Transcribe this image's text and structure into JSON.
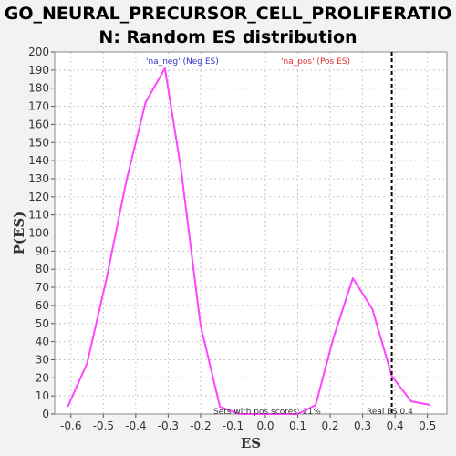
{
  "chart_data": {
    "type": "line",
    "title_line1": "GO_NEURAL_PRECURSOR_CELL_PROLIFERATIO",
    "title_line2": "N: Random ES distribution",
    "xlabel": "ES",
    "ylabel": "P(ES)",
    "xlim": [
      -0.65,
      0.56
    ],
    "ylim": [
      0,
      200
    ],
    "x_ticks": [
      -0.6,
      -0.5,
      -0.4,
      -0.3,
      -0.2,
      -0.1,
      0.0,
      0.1,
      0.2,
      0.3,
      0.4,
      0.5
    ],
    "x_tick_labels": [
      "-0.6",
      "-0.5",
      "-0.4",
      "-0.3",
      "-0.2",
      "-0.1",
      "0.0",
      "0.1",
      "0.2",
      "0.3",
      "0.4",
      "0.5"
    ],
    "y_ticks": [
      0,
      10,
      20,
      30,
      40,
      50,
      60,
      70,
      80,
      90,
      100,
      110,
      120,
      130,
      140,
      150,
      160,
      170,
      180,
      190,
      200
    ],
    "grid": true,
    "series": [
      {
        "color": "#ff44ff",
        "x": [
          -0.61,
          -0.55,
          -0.49,
          -0.43,
          -0.37,
          -0.31,
          -0.26,
          -0.2,
          -0.14,
          -0.08,
          -0.02,
          0.04,
          0.1,
          0.155,
          0.21,
          0.27,
          0.33,
          0.39,
          0.45,
          0.51
        ],
        "y": [
          4,
          28,
          75,
          128,
          172,
          191,
          135,
          49,
          4,
          0,
          0,
          0,
          0,
          5,
          42,
          75,
          58,
          21,
          7,
          5
        ]
      }
    ],
    "real_es": 0.39,
    "annotations": {
      "neg_label": "'na_neg' (Neg ES)",
      "neg_color": "#3333cc",
      "pos_label": "'na_pos' (Pos ES)",
      "pos_color": "#dd3333",
      "sets_text": "Sets with pos scores: 21%",
      "real_es_text": "Real ES 0.4"
    }
  }
}
